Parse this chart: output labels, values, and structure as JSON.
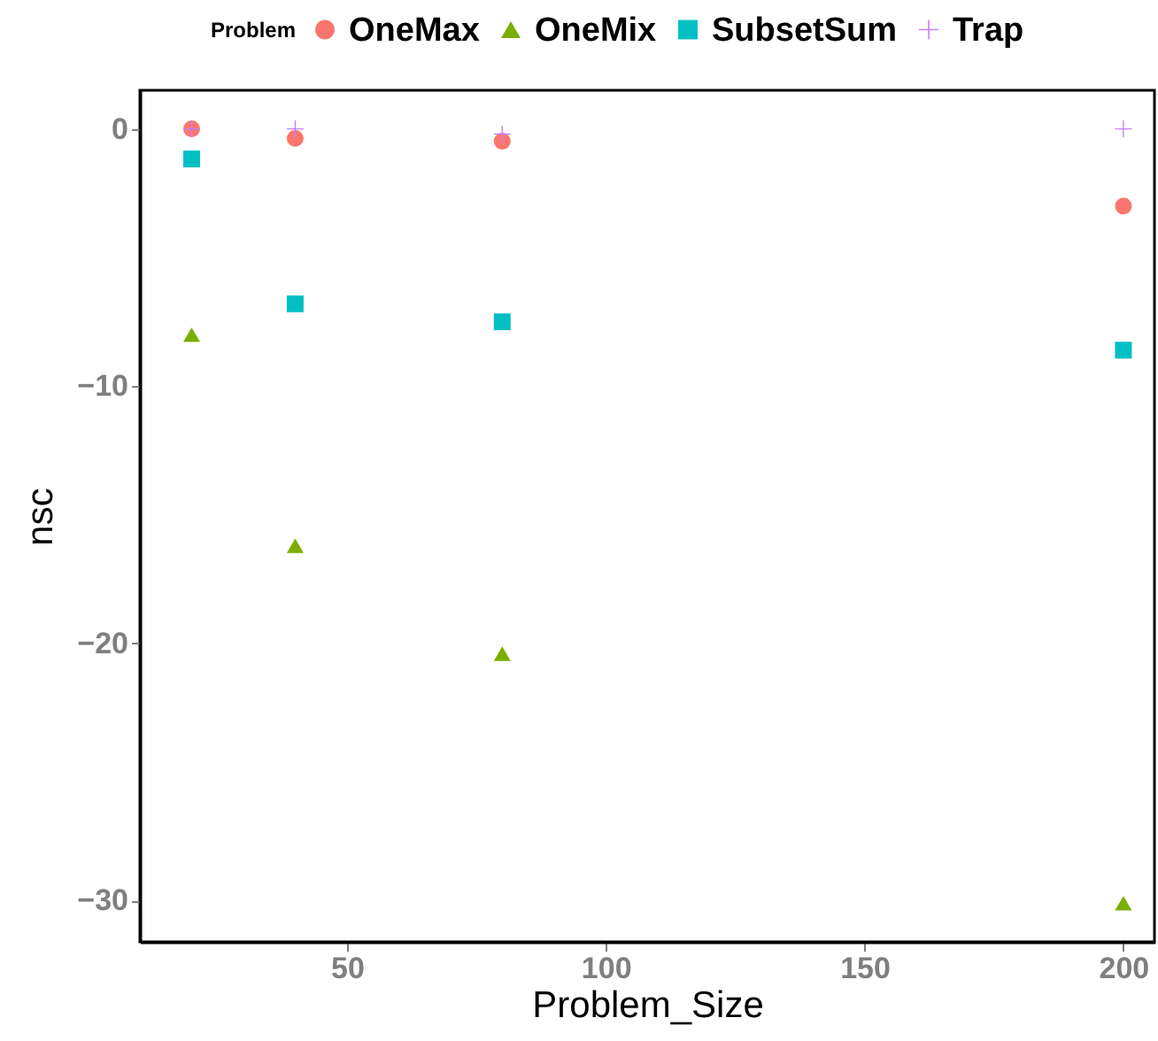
{
  "chart_data": {
    "type": "scatter",
    "xlabel": "Problem_Size",
    "ylabel": "nsc",
    "legend_title": "Problem",
    "legend": "top",
    "grid": false,
    "x": [
      20,
      40,
      80,
      200
    ],
    "xlim": [
      10,
      206
    ],
    "xticks": [
      50,
      100,
      150,
      200
    ],
    "ylim": [
      -31.6,
      1.5
    ],
    "yticks": [
      0,
      -10,
      -20,
      -30
    ],
    "series": [
      {
        "name": "OneMax",
        "color": "#f8766d",
        "marker": "circle",
        "values": [
          0,
          -0.37,
          -0.48,
          -3.0
        ]
      },
      {
        "name": "OneMix",
        "color": "#7cae00",
        "marker": "triangle",
        "values": [
          -8.0,
          -16.2,
          -20.4,
          -30.1
        ]
      },
      {
        "name": "SubsetSum",
        "color": "#00bfc4",
        "marker": "square",
        "values": [
          -1.17,
          -6.8,
          -7.5,
          -8.6
        ]
      },
      {
        "name": "Trap",
        "color": "#c77cff",
        "marker": "cross",
        "values": [
          0,
          0,
          -0.2,
          0
        ]
      }
    ]
  }
}
